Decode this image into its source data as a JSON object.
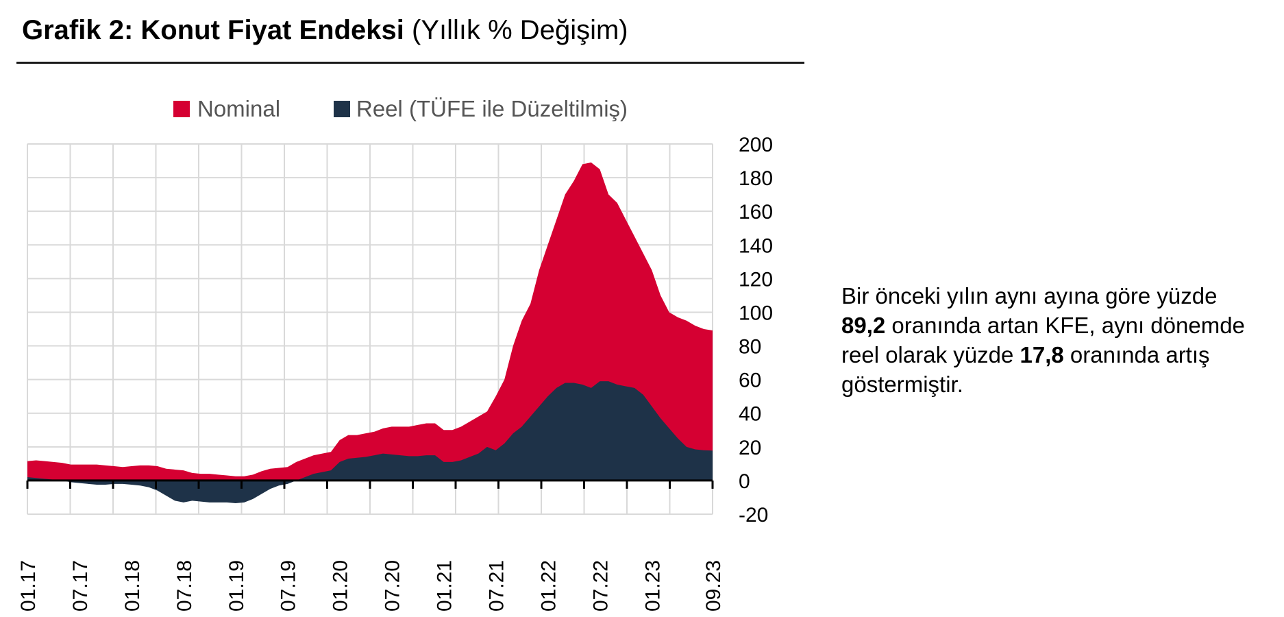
{
  "title": {
    "bold": "Grafik 2: Konut Fiyat Endeksi",
    "rest": "(Yıllık % Değişim)"
  },
  "note": {
    "p1": "Bir önceki yılın aynı ayına göre yüzde",
    "v1": "89,2",
    "p2": "oranında artan KFE, aynı dönemde reel olarak yüzde",
    "v2": "17,8",
    "p3": "oranında artış göstermiştir."
  },
  "chart_data": {
    "type": "area",
    "title": "",
    "xlabel": "",
    "ylabel": "",
    "ylim": [
      -20,
      200
    ],
    "yticks": [
      200,
      180,
      160,
      140,
      120,
      100,
      80,
      60,
      40,
      20,
      0,
      -20
    ],
    "x_tick_labels": [
      "01.17",
      "07.17",
      "01.18",
      "07.18",
      "01.19",
      "07.19",
      "01.20",
      "07.20",
      "01.21",
      "07.21",
      "01.22",
      "07.22",
      "01.23",
      "09.23"
    ],
    "legend_position": "top-center",
    "grid": true,
    "series": [
      {
        "name": "Nominal",
        "color": "#d50032",
        "values": [
          11.5,
          12,
          11.5,
          11,
          10.5,
          9.5,
          9.5,
          9.5,
          9.5,
          9,
          8.5,
          8,
          8.5,
          9,
          9,
          8.5,
          7,
          6.5,
          6,
          4.5,
          4,
          4,
          3.5,
          3,
          2.5,
          2.5,
          3.5,
          5.5,
          7,
          7.5,
          8,
          11,
          13,
          15,
          16,
          17,
          24,
          27,
          27,
          28,
          29,
          31,
          32,
          32,
          32,
          33,
          34,
          34,
          30,
          30,
          32,
          35,
          38,
          41,
          50,
          60,
          80,
          95,
          105,
          125,
          140,
          155,
          170,
          178,
          188,
          189,
          185,
          170,
          165,
          155,
          145,
          135,
          125,
          110,
          100,
          97,
          95,
          92,
          90,
          89.2
        ]
      },
      {
        "name": "Reel (TÜFE ile Düzeltilmiş)",
        "color": "#1e3248",
        "values": [
          2,
          1.5,
          1,
          0.5,
          0,
          -1,
          -1.5,
          -2,
          -2.5,
          -2.5,
          -2,
          -2,
          -2.5,
          -3,
          -4,
          -6,
          -9,
          -12,
          -13,
          -12,
          -12.5,
          -13,
          -13,
          -13,
          -13.5,
          -13,
          -11,
          -8,
          -5,
          -3,
          -2,
          0,
          2,
          4,
          5,
          6,
          11,
          13,
          13.5,
          14,
          15,
          16,
          15.5,
          15,
          14.5,
          14.5,
          15,
          15,
          11,
          11,
          12,
          14,
          16,
          20,
          18,
          22,
          28,
          32,
          38,
          44,
          50,
          55,
          58,
          58,
          57,
          55,
          59,
          59,
          57,
          56,
          55,
          51,
          44,
          37,
          31,
          25,
          20,
          18.5,
          18,
          17.8
        ]
      }
    ]
  },
  "colors": {
    "nominal": "#d50032",
    "reel": "#1e3248",
    "grid": "#d9d9d9"
  }
}
